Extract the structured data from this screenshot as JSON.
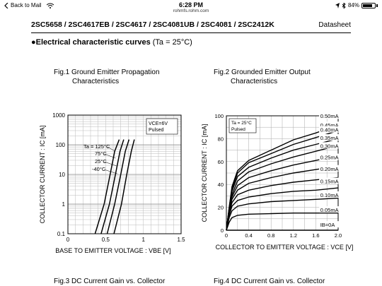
{
  "status_bar": {
    "back_label": "Back to Mail",
    "time": "6:28 PM",
    "url": "rohmfs.rohm.com",
    "battery": "84%",
    "battery_level": 0.84
  },
  "document": {
    "part_numbers": "2SC5658 / 2SC4617EB / 2SC4617 / 2SC4081UB / 2SC4081 / 2SC2412K",
    "doc_type": "Datasheet",
    "section_title": "Electrical characteristic curves",
    "section_condition": "(Ta = 25°C)"
  },
  "fig1": {
    "title_line1": "Fig.1 Ground Emitter Propagation",
    "title_line2": "Characteristics",
    "xlabel": "BASE TO EMITTER VOLTAGE : VBE [V]",
    "ylabel": "COLLECTOR CURRENT : IC [mA]",
    "condition_line1": "VCE=6V",
    "condition_line2": "Pulsed",
    "curve_labels": [
      "Ta = 125°C",
      "75°C",
      "25°C",
      "-40°C"
    ],
    "x_ticks": [
      "0",
      "0.5",
      "1",
      "1.5"
    ],
    "y_ticks": [
      "1000",
      "100",
      "10",
      "1",
      "0.1"
    ]
  },
  "fig2": {
    "title_line1": "Fig.2 Grounded Emitter Output",
    "title_line2": "Characteristics",
    "xlabel": "COLLECTOR TO EMITTER VOLTAGE : VCE [V]",
    "ylabel": "COLLECTOR CURRENT : IC [mA]",
    "condition_line1": "Ta = 25°C",
    "condition_line2": "Pulsed",
    "curve_labels": [
      "0.50mA",
      "0.45mA",
      "0.40mA",
      "0.35mA",
      "0.30mA",
      "0.25mA",
      "0.20mA",
      "0.15mA",
      "0.10mA",
      "0.05mA",
      "IB=0A"
    ],
    "x_ticks": [
      "0",
      "0.4",
      "0.8",
      "1.2",
      "1.6",
      "2.0"
    ],
    "y_ticks": [
      "100",
      "80",
      "60",
      "40",
      "20",
      "0"
    ]
  },
  "fig3": {
    "title": "Fig.3 DC Current Gain vs. Collector"
  },
  "fig4": {
    "title": "Fig.4 DC Current Gain vs. Collector"
  },
  "chart_data": [
    {
      "type": "line",
      "title": "Fig.1 Ground Emitter Propagation Characteristics",
      "xlabel": "BASE TO EMITTER VOLTAGE : VBE [V]",
      "ylabel": "COLLECTOR CURRENT : IC [mA]",
      "xlim": [
        0,
        1.5
      ],
      "ylim": [
        0.1,
        1000
      ],
      "yscale": "log",
      "grid": true,
      "series": [
        {
          "name": "Ta = 125°C",
          "x": [
            0.36,
            0.48,
            0.56,
            0.62,
            0.68
          ],
          "y": [
            0.1,
            1,
            10,
            60,
            150
          ]
        },
        {
          "name": "75°C",
          "x": [
            0.44,
            0.55,
            0.63,
            0.69,
            0.74
          ],
          "y": [
            0.1,
            1,
            10,
            60,
            150
          ]
        },
        {
          "name": "25°C",
          "x": [
            0.52,
            0.62,
            0.7,
            0.76,
            0.81
          ],
          "y": [
            0.1,
            1,
            10,
            60,
            150
          ]
        },
        {
          "name": "-40°C",
          "x": [
            0.61,
            0.71,
            0.78,
            0.84,
            0.88
          ],
          "y": [
            0.1,
            1,
            10,
            60,
            150
          ]
        }
      ]
    },
    {
      "type": "line",
      "title": "Fig.2 Grounded Emitter Output Characteristics",
      "xlabel": "COLLECTOR TO EMITTER VOLTAGE : VCE [V]",
      "ylabel": "COLLECTOR CURRENT : IC [mA]",
      "xlim": [
        0,
        2.0
      ],
      "ylim": [
        0,
        100
      ],
      "grid": true,
      "series": [
        {
          "name": "0.50mA",
          "x": [
            0,
            0.05,
            0.1,
            0.2,
            0.4,
            0.8,
            1.2,
            1.6,
            2.0
          ],
          "y": [
            0,
            20,
            38,
            52,
            61,
            70,
            79,
            85,
            92
          ]
        },
        {
          "name": "0.45mA",
          "x": [
            0,
            0.05,
            0.1,
            0.2,
            0.4,
            0.8,
            1.2,
            1.6,
            2.0
          ],
          "y": [
            0,
            20,
            36,
            50,
            59,
            67,
            75,
            81,
            87
          ]
        },
        {
          "name": "0.40mA",
          "x": [
            0,
            0.05,
            0.1,
            0.2,
            0.4,
            0.8,
            1.2,
            1.6,
            2.0
          ],
          "y": [
            0,
            19,
            34,
            47,
            55,
            63,
            70,
            75,
            80
          ]
        },
        {
          "name": "0.35mA",
          "x": [
            0,
            0.05,
            0.1,
            0.2,
            0.4,
            0.8,
            1.2,
            1.6,
            2.0
          ],
          "y": [
            0,
            18,
            31,
            43,
            51,
            58,
            64,
            69,
            74
          ]
        },
        {
          "name": "0.30mA",
          "x": [
            0,
            0.05,
            0.1,
            0.2,
            0.4,
            0.8,
            1.2,
            1.6,
            2.0
          ],
          "y": [
            0,
            17,
            29,
            39,
            46,
            52,
            57,
            61,
            65
          ]
        },
        {
          "name": "0.25mA",
          "x": [
            0,
            0.05,
            0.1,
            0.2,
            0.4,
            0.8,
            1.2,
            1.6,
            2.0
          ],
          "y": [
            0,
            16,
            27,
            35,
            41,
            46,
            50,
            53,
            56
          ]
        },
        {
          "name": "0.20mA",
          "x": [
            0,
            0.05,
            0.1,
            0.2,
            0.4,
            0.8,
            1.2,
            1.6,
            2.0
          ],
          "y": [
            0,
            15,
            24,
            31,
            35,
            39,
            42,
            44,
            46
          ]
        },
        {
          "name": "0.15mA",
          "x": [
            0,
            0.05,
            0.1,
            0.2,
            0.4,
            0.8,
            1.2,
            1.6,
            2.0
          ],
          "y": [
            0,
            13,
            21,
            26,
            29,
            32,
            34,
            35,
            37
          ]
        },
        {
          "name": "0.10mA",
          "x": [
            0,
            0.05,
            0.1,
            0.2,
            0.4,
            0.8,
            1.2,
            1.6,
            2.0
          ],
          "y": [
            0,
            11,
            17,
            21,
            23,
            25,
            26,
            27,
            28
          ]
        },
        {
          "name": "0.05mA",
          "x": [
            0,
            0.05,
            0.1,
            0.2,
            0.4,
            0.8,
            1.2,
            1.6,
            2.0
          ],
          "y": [
            0,
            7,
            11,
            13,
            14,
            14.5,
            15,
            15,
            15
          ]
        },
        {
          "name": "IB=0A",
          "x": [
            0,
            2.0
          ],
          "y": [
            0,
            0
          ]
        }
      ]
    }
  ]
}
